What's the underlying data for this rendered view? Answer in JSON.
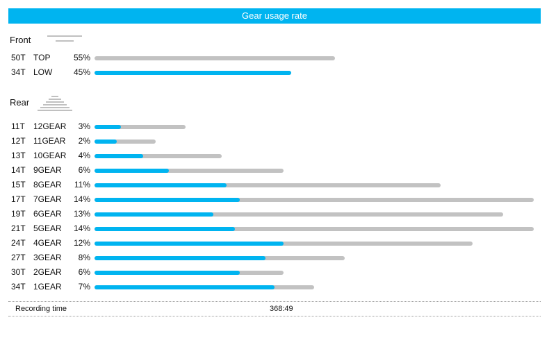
{
  "header": {
    "title": "Gear usage rate",
    "bg": "#00b4f0"
  },
  "colors": {
    "fill": "#00b4f0",
    "track": "#c2c2c2"
  },
  "front": {
    "title": "Front",
    "icon": "front-chainring-icon",
    "rows": [
      {
        "teeth": "50T",
        "gear": "TOP",
        "pct": "55%",
        "usage": 0,
        "range": 0.547
      },
      {
        "teeth": "34T",
        "gear": "LOW",
        "pct": "45%",
        "usage": 0.447,
        "range": 0.447
      }
    ]
  },
  "rear": {
    "title": "Rear",
    "icon": "rear-cassette-icon",
    "rows": [
      {
        "teeth": "11T",
        "gear": "12GEAR",
        "pct": "3%",
        "usage": 0.06,
        "range": 0.208
      },
      {
        "teeth": "12T",
        "gear": "11GEAR",
        "pct": "2%",
        "usage": 0.05,
        "range": 0.139
      },
      {
        "teeth": "13T",
        "gear": "10GEAR",
        "pct": "4%",
        "usage": 0.11,
        "range": 0.289
      },
      {
        "teeth": "14T",
        "gear": "9GEAR",
        "pct": "6%",
        "usage": 0.17,
        "range": 0.43
      },
      {
        "teeth": "15T",
        "gear": "8GEAR",
        "pct": "11%",
        "usage": 0.3,
        "range": 0.788
      },
      {
        "teeth": "17T",
        "gear": "7GEAR",
        "pct": "14%",
        "usage": 0.33,
        "range": 1.0
      },
      {
        "teeth": "19T",
        "gear": "6GEAR",
        "pct": "13%",
        "usage": 0.27,
        "range": 0.93
      },
      {
        "teeth": "21T",
        "gear": "5GEAR",
        "pct": "14%",
        "usage": 0.32,
        "range": 1.0
      },
      {
        "teeth": "24T",
        "gear": "4GEAR",
        "pct": "12%",
        "usage": 0.43,
        "range": 0.86
      },
      {
        "teeth": "27T",
        "gear": "3GEAR",
        "pct": "8%",
        "usage": 0.39,
        "range": 0.57
      },
      {
        "teeth": "30T",
        "gear": "2GEAR",
        "pct": "6%",
        "usage": 0.33,
        "range": 0.43
      },
      {
        "teeth": "34T",
        "gear": "1GEAR",
        "pct": "7%",
        "usage": 0.41,
        "range": 0.5
      }
    ]
  },
  "footer": {
    "label": "Recording time",
    "value": "368:49"
  }
}
